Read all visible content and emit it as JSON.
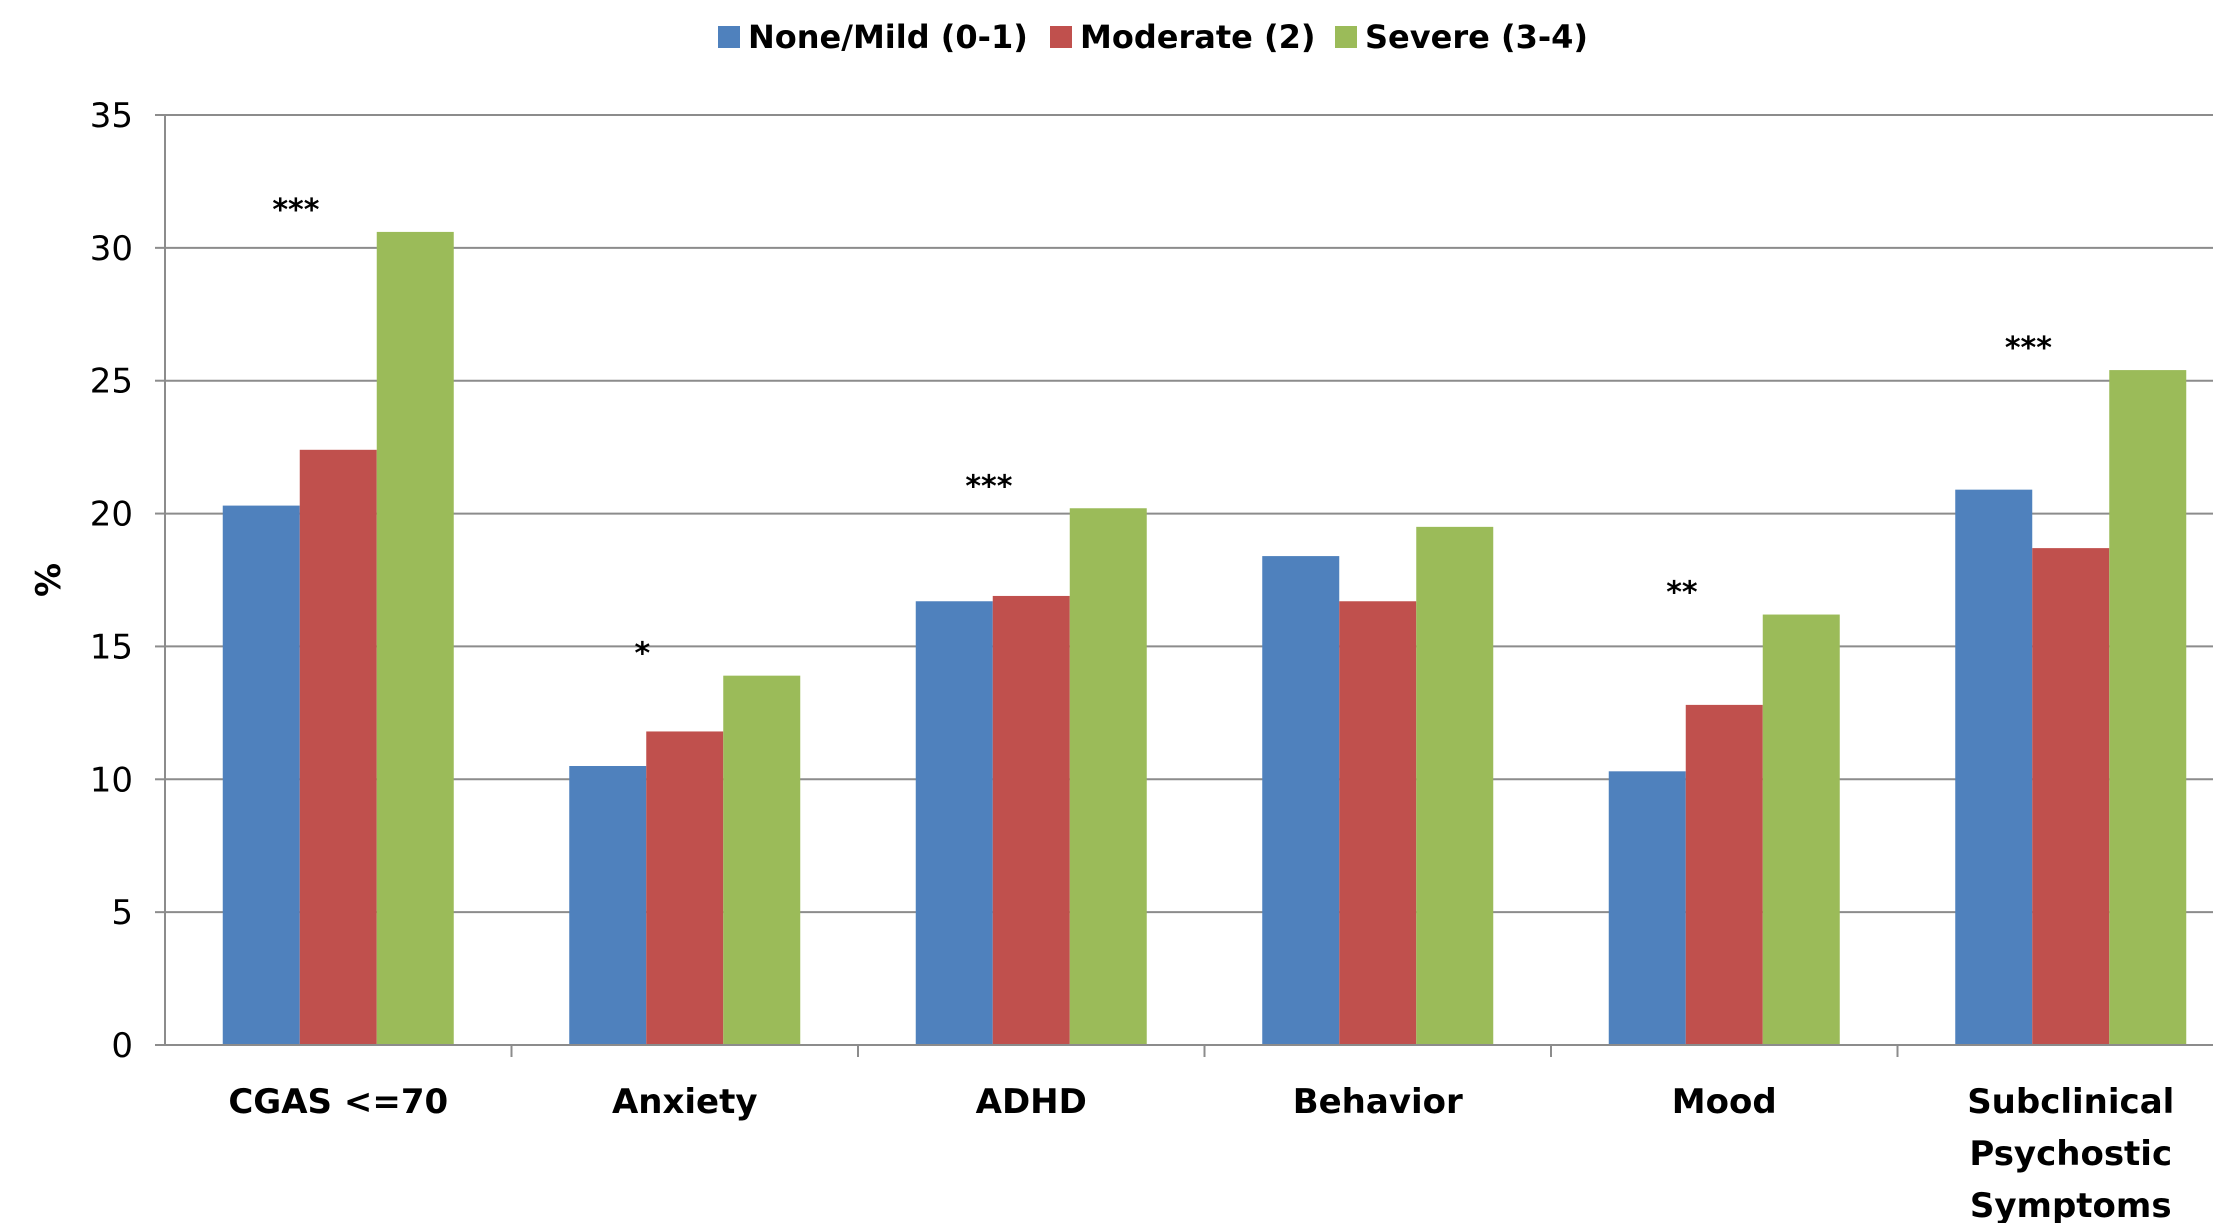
{
  "chart_data": {
    "type": "bar",
    "title": "",
    "xlabel": "",
    "ylabel": "%",
    "ylim": [
      0,
      35
    ],
    "yticks": [
      0,
      5,
      10,
      15,
      20,
      25,
      30,
      35
    ],
    "grid": true,
    "legend": "top-center",
    "categories": [
      [
        "CGAS <=70"
      ],
      [
        "Anxiety"
      ],
      [
        "ADHD"
      ],
      [
        "Behavior"
      ],
      [
        "Mood"
      ],
      [
        "Subclinical",
        "Psychostic",
        "Symptoms"
      ]
    ],
    "series": [
      {
        "name": "None/Mild (0-1)",
        "color": "#4F81BD",
        "values": [
          20.3,
          10.5,
          16.7,
          18.4,
          10.3,
          20.9
        ]
      },
      {
        "name": "Moderate (2)",
        "color": "#C0504D",
        "values": [
          22.4,
          11.8,
          16.9,
          16.7,
          12.8,
          18.7
        ]
      },
      {
        "name": "Severe (3-4)",
        "color": "#9BBB59",
        "values": [
          30.6,
          13.9,
          20.2,
          19.5,
          16.2,
          25.4
        ]
      }
    ],
    "annotations": [
      {
        "category": 0,
        "text": "***"
      },
      {
        "category": 1,
        "text": "*"
      },
      {
        "category": 2,
        "text": "***"
      },
      {
        "category": 4,
        "text": "**"
      },
      {
        "category": 5,
        "text": "***"
      }
    ]
  }
}
